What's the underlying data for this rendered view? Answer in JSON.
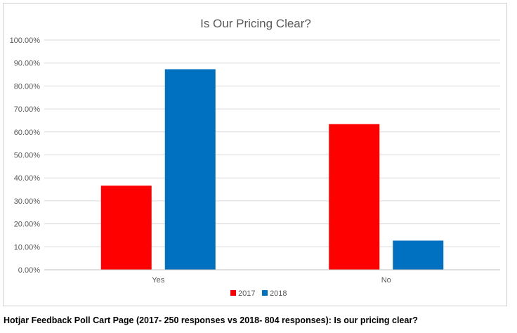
{
  "chart_data": {
    "type": "bar",
    "title": "Is Our Pricing Clear?",
    "categories": [
      "Yes",
      "No"
    ],
    "series": [
      {
        "name": "2017",
        "color": "#ff0000",
        "values": [
          36.6,
          63.4
        ]
      },
      {
        "name": "2018",
        "color": "#0070c0",
        "values": [
          87.3,
          12.7
        ]
      }
    ],
    "ylim": [
      0,
      100
    ],
    "yticks": [
      "0.00%",
      "10.00%",
      "20.00%",
      "30.00%",
      "40.00%",
      "50.00%",
      "60.00%",
      "70.00%",
      "80.00%",
      "90.00%",
      "100.00%"
    ],
    "grid": true,
    "legend_position": "bottom",
    "xlabel": "",
    "ylabel": ""
  },
  "caption": "Hotjar Feedback Poll Cart Page (2017- 250 responses vs 2018- 804 responses): Is our pricing clear?"
}
